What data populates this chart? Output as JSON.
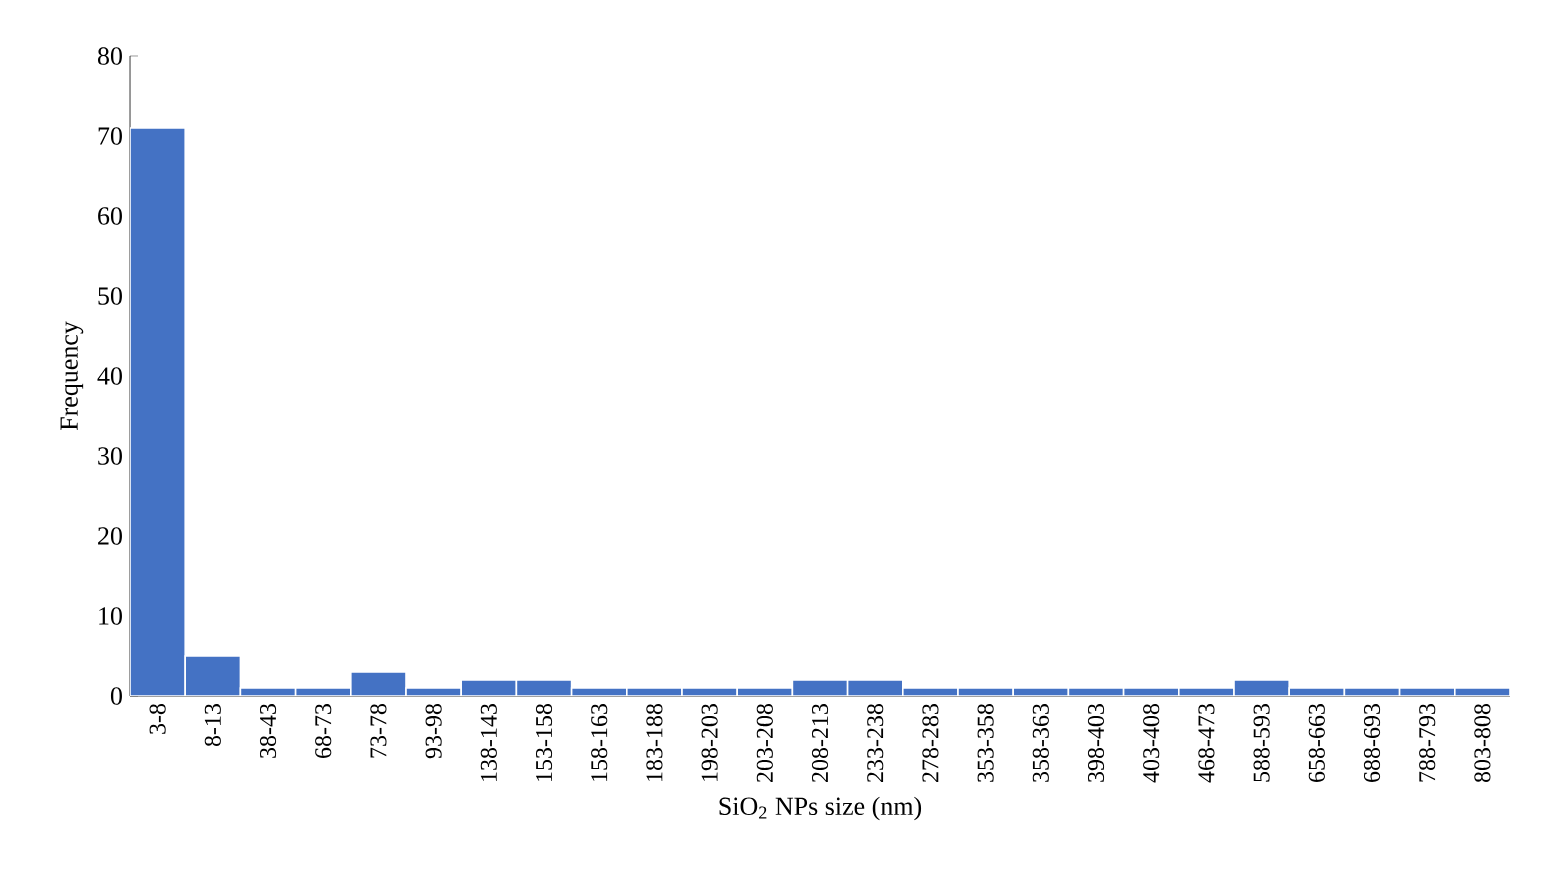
{
  "chart_data": {
    "type": "bar",
    "xlabel": "SiO$_{2}$ NPs size (nm)",
    "ylabel": "Frequency",
    "categories": [
      "3-8",
      "8-13",
      "38-43",
      "68-73",
      "73-78",
      "93-98",
      "138-143",
      "153-158",
      "158-163",
      "183-188",
      "198-203",
      "203-208",
      "208-213",
      "233-238",
      "278-283",
      "353-358",
      "358-363",
      "398-403",
      "403-408",
      "468-473",
      "588-593",
      "658-663",
      "688-693",
      "788-793",
      "803-808"
    ],
    "values": [
      71,
      5,
      1,
      1,
      3,
      1,
      2,
      2,
      1,
      1,
      1,
      1,
      2,
      2,
      1,
      1,
      1,
      1,
      1,
      1,
      2,
      1,
      1,
      1,
      1
    ],
    "color": "#4472c4",
    "ylim": [
      0,
      80
    ],
    "yticks": [
      0,
      10,
      20,
      30,
      40,
      50,
      60,
      70,
      80
    ],
    "grid": false
  }
}
